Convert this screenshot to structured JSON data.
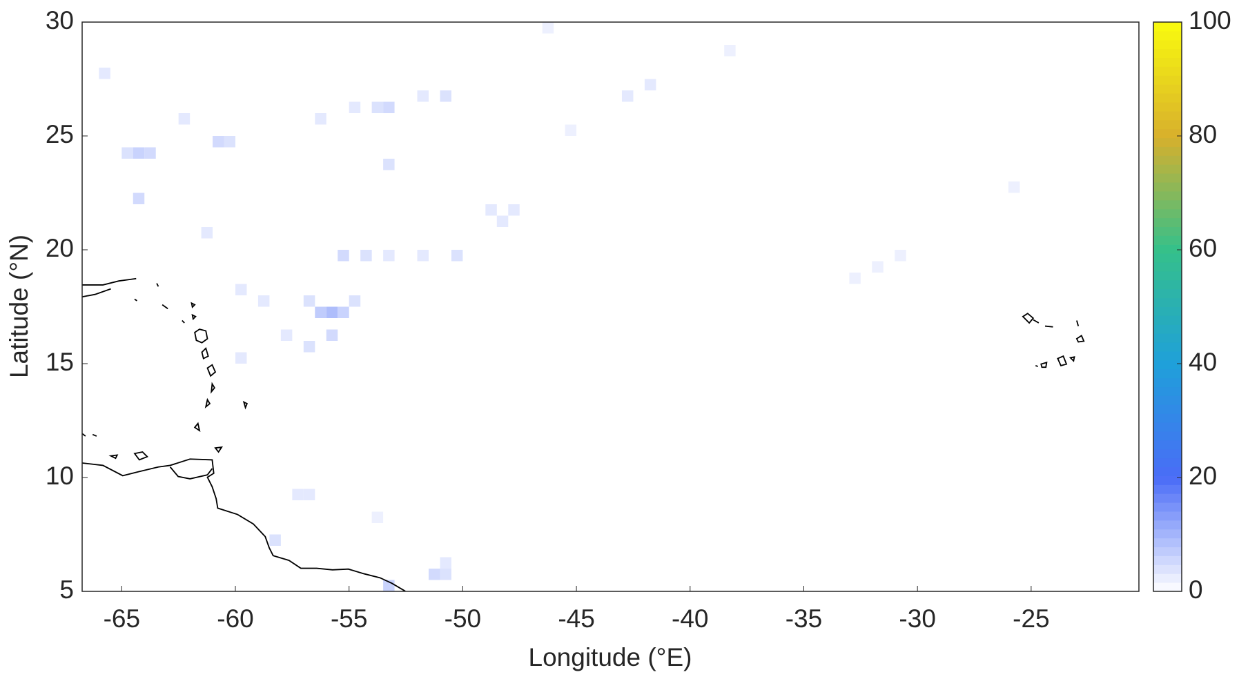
{
  "chart_data": {
    "type": "heatmap",
    "xlabel": "Longitude (°E)",
    "ylabel": "Latitude (°N)",
    "xlim": [
      -66.74,
      -20.26
    ],
    "ylim": [
      5,
      30
    ],
    "xticks": [
      -65,
      -60,
      -55,
      -50,
      -45,
      -40,
      -35,
      -30,
      -25
    ],
    "yticks": [
      5,
      10,
      15,
      20,
      25,
      30
    ],
    "cell_size": 0.5,
    "cells": {
      "lon": [
        -65,
        -64.5,
        -64,
        -61,
        -60.5,
        -64.5,
        -56,
        -56.5,
        -55.5,
        -55,
        -57,
        -56,
        -57,
        -58,
        -55.5,
        -54.5,
        -53.5,
        -52,
        -50.5,
        -54,
        -53.5,
        -55,
        -52,
        -51,
        -49,
        -48.5,
        -48,
        -53.5,
        -56.5,
        -62.5,
        -66,
        -43,
        -42,
        -31,
        -32,
        -33,
        -26,
        -61.5,
        -60,
        -59,
        -57,
        -57.5,
        -58.5,
        -51.5,
        -51,
        -51,
        -53.5,
        -60,
        -54,
        -45.5,
        -38.5,
        -46.5
      ],
      "lat": [
        24,
        24,
        24,
        24.5,
        24.5,
        22,
        17,
        17,
        17,
        17.5,
        17.5,
        16,
        15.5,
        16,
        19.5,
        19.5,
        19.5,
        19.5,
        19.5,
        26,
        26,
        26,
        26.5,
        26.5,
        21.5,
        21,
        21.5,
        23.5,
        25.5,
        25.5,
        27.5,
        26.5,
        27,
        19.5,
        19,
        18.5,
        22.5,
        20.5,
        18,
        17.5,
        9,
        9,
        7,
        5.5,
        5.5,
        6,
        5,
        15,
        8,
        25,
        28.5,
        29.5
      ],
      "values": [
        4,
        6,
        5,
        5,
        4,
        5,
        9,
        7,
        6,
        4,
        4,
        5,
        4,
        3,
        5,
        4,
        3,
        3,
        4,
        4,
        5,
        3,
        3,
        4,
        3,
        3,
        3,
        4,
        3,
        3,
        3,
        3,
        3,
        2,
        2,
        2,
        2,
        3,
        3,
        3,
        3,
        3,
        4,
        5,
        4,
        3,
        6,
        3,
        2,
        2,
        2,
        2
      ]
    },
    "colorbar": {
      "lim": [
        0,
        100
      ],
      "ticks": [
        0,
        20,
        40,
        60,
        80,
        100
      ]
    },
    "colormap": [
      "#ffffff",
      "#4a6cf7",
      "#1fa0da",
      "#35c08a",
      "#d8b02c",
      "#f9fb0e"
    ]
  }
}
